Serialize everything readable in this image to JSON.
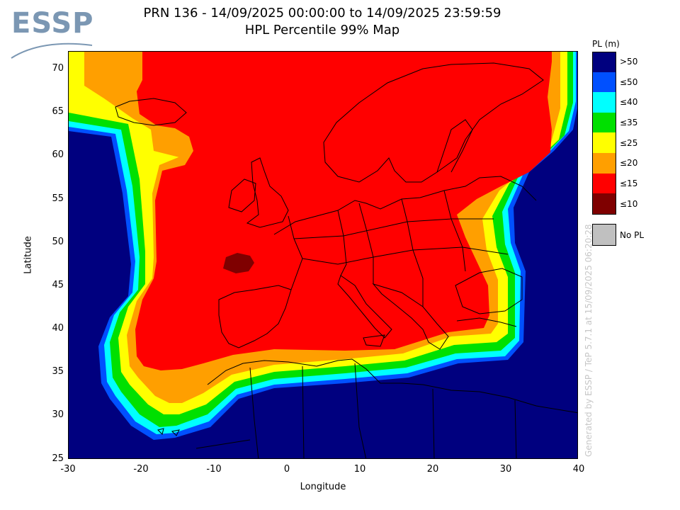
{
  "logo": {
    "text": "ESSP"
  },
  "title": {
    "line1": "PRN 136 - 14/09/2025 00:00:00 to 14/09/2025 23:59:59",
    "line2": "HPL Percentile 99% Map"
  },
  "axes": {
    "xlabel": "Longitude",
    "ylabel": "Latitude",
    "xticks": [
      "-30",
      "-20",
      "-10",
      "0",
      "10",
      "20",
      "30",
      "40"
    ],
    "yticks": [
      "70",
      "65",
      "60",
      "55",
      "50",
      "45",
      "40",
      "35",
      "30",
      "25"
    ],
    "xlim": [
      -30,
      40
    ],
    "ylim": [
      25,
      72
    ]
  },
  "legend": {
    "title": "PL (m)",
    "items": [
      {
        "label": ">50",
        "color": "#00007f"
      },
      {
        "label": "≤50",
        "color": "#0050ff"
      },
      {
        "label": "≤40",
        "color": "#00ffff"
      },
      {
        "label": "≤35",
        "color": "#00e000"
      },
      {
        "label": "≤25",
        "color": "#ffff00"
      },
      {
        "label": "≤20",
        "color": "#ff9f00"
      },
      {
        "label": "≤15",
        "color": "#ff0000"
      },
      {
        "label": "≤10",
        "color": "#7f0000"
      }
    ],
    "nopl": {
      "label": "No PL",
      "color": "#c0c0c0"
    }
  },
  "footer_note": "Generated by ESSP / TeP 5.7.1 at 15/09/2025 06:20:28",
  "chart_data": {
    "type": "heatmap",
    "title": "HPL Percentile 99% Map",
    "xlabel": "Longitude",
    "ylabel": "Latitude",
    "xlim": [
      -30,
      40
    ],
    "ylim": [
      25,
      72
    ],
    "colorbar_unit": "PL (m)",
    "bins": [
      ">50",
      "≤50",
      "≤40",
      "≤35",
      "≤25",
      "≤20",
      "≤15",
      "≤10"
    ]
  }
}
